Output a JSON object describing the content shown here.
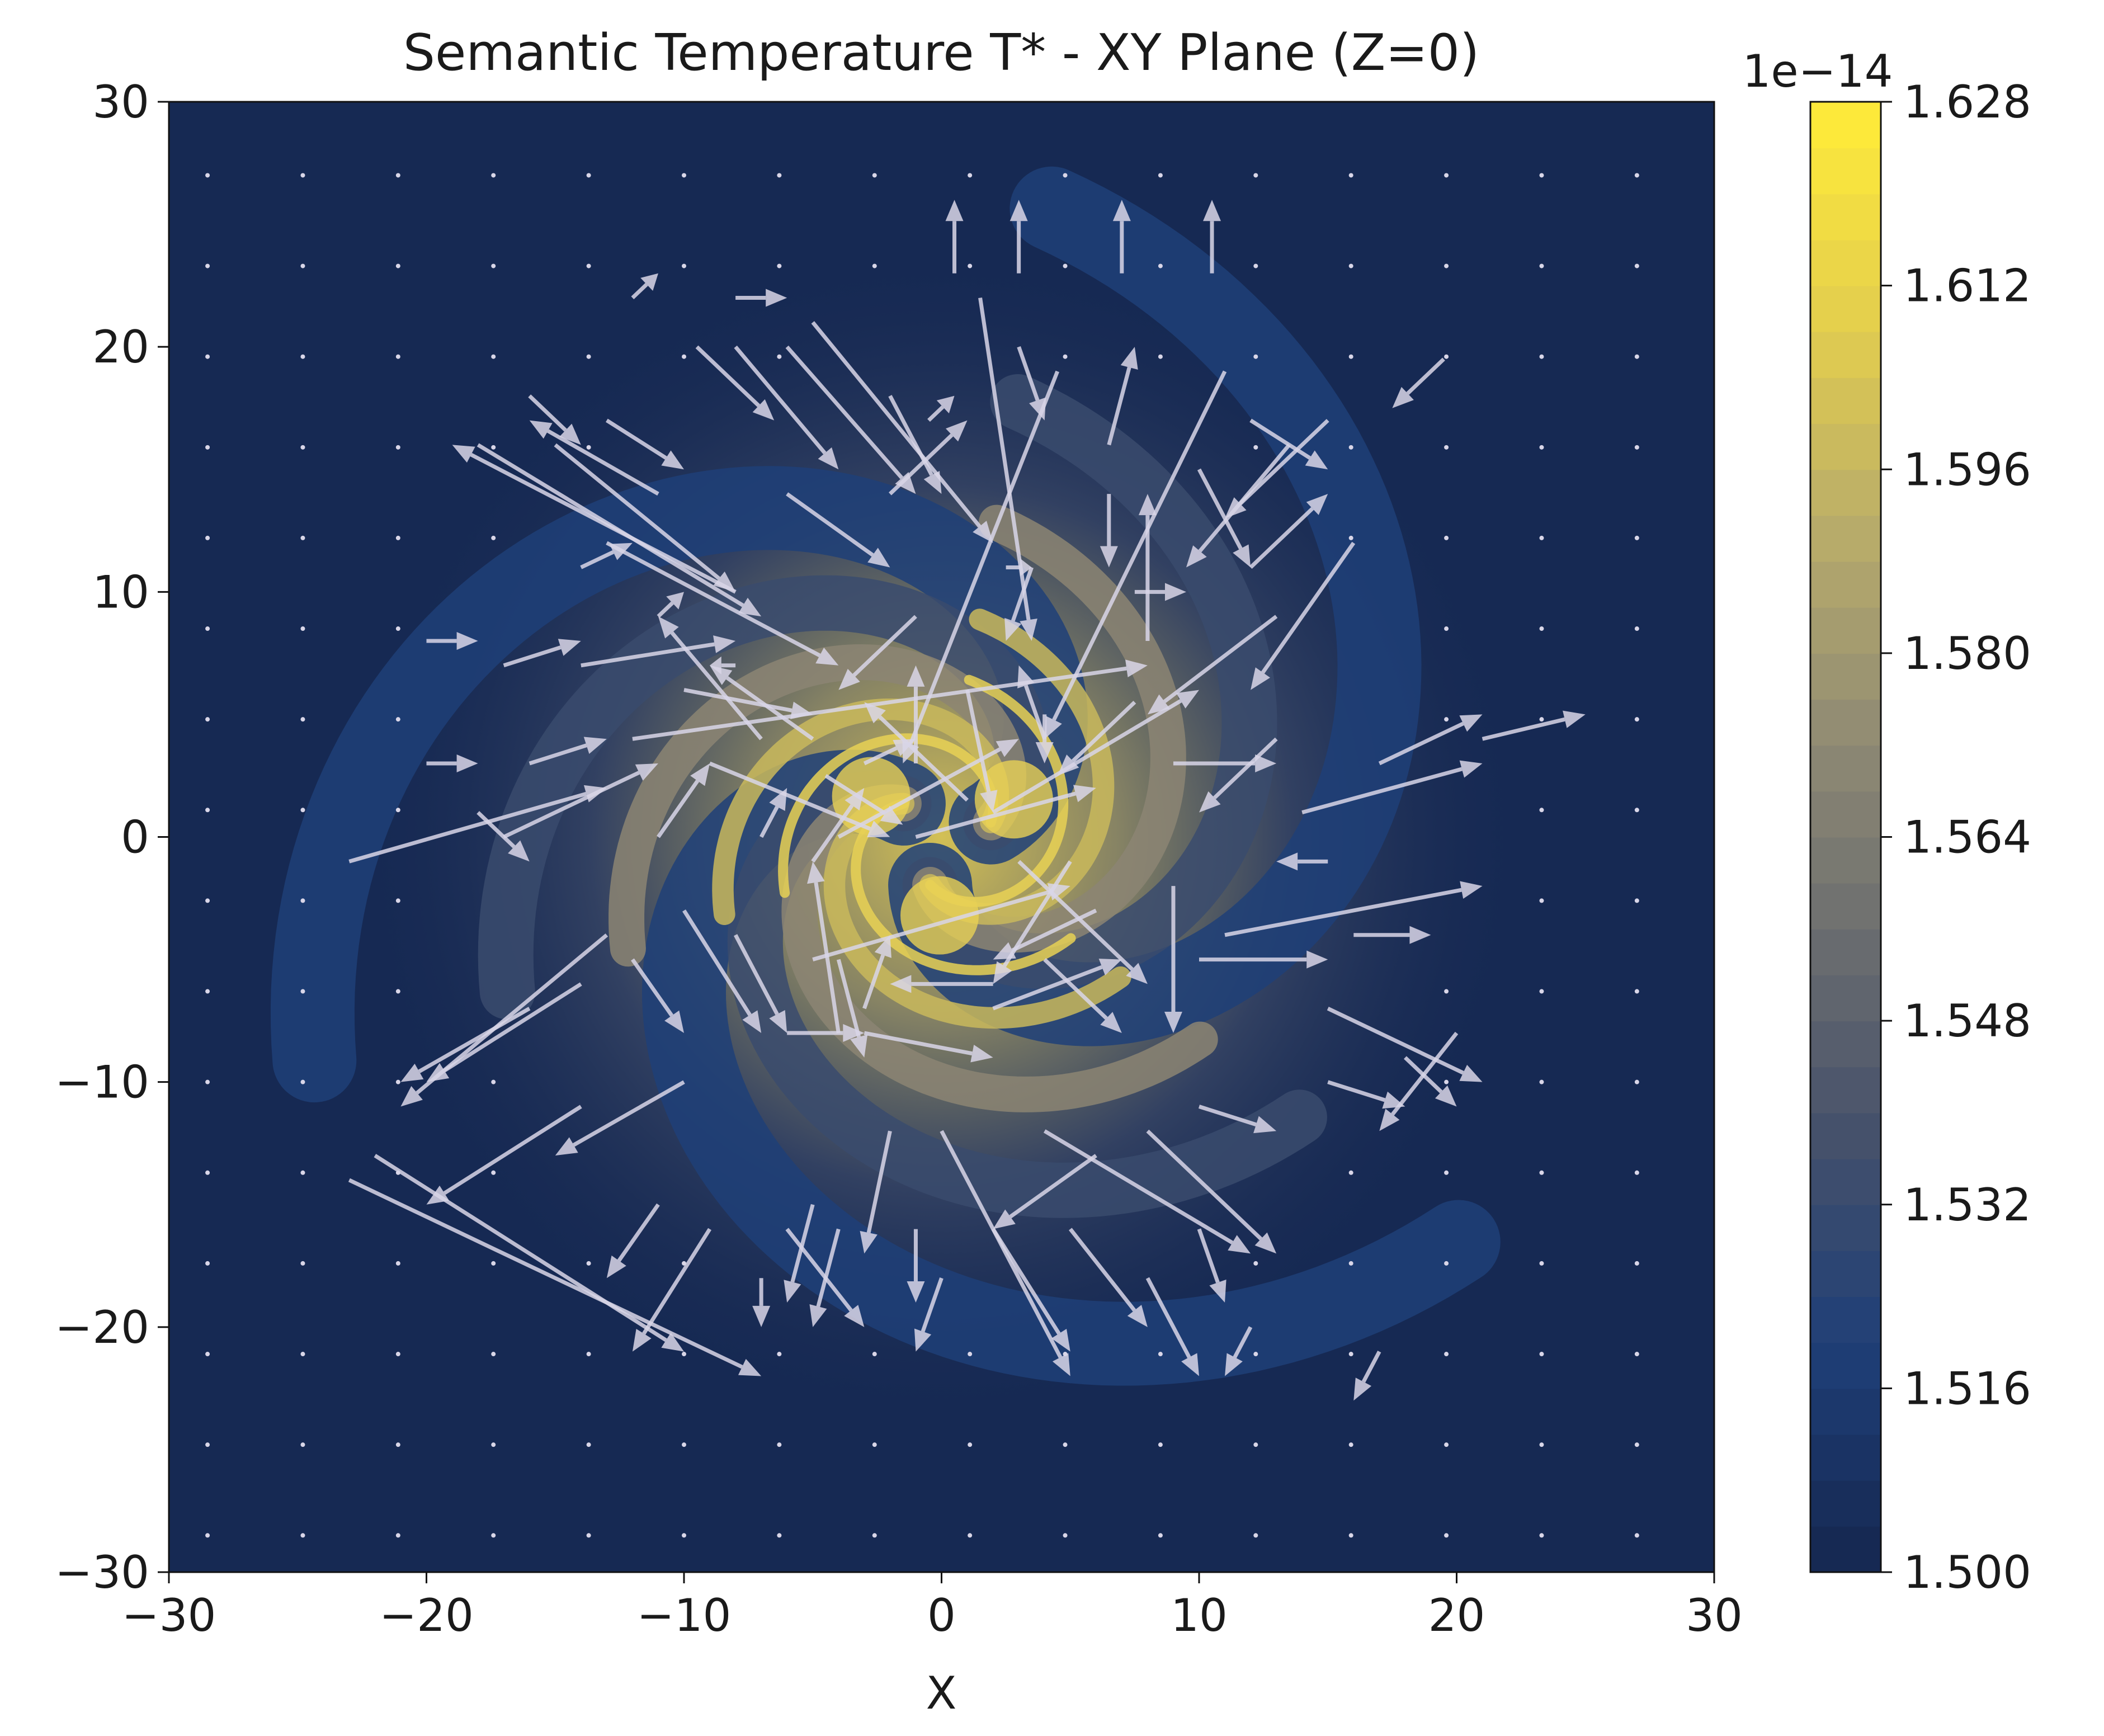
{
  "chart_data": {
    "type": "heatmap",
    "title": "Semantic Temperature T* - XY Plane (Z=0)",
    "xlabel": "X",
    "ylabel": "",
    "xlim": [
      -30,
      30
    ],
    "ylim": [
      -30,
      30
    ],
    "x_ticks": [
      -30,
      -20,
      -10,
      0,
      10,
      20,
      30
    ],
    "y_ticks": [
      -30,
      -20,
      -10,
      0,
      10,
      20,
      30
    ],
    "x_tick_labels": [
      "−30",
      "−20",
      "−10",
      "0",
      "10",
      "20",
      "30"
    ],
    "y_tick_labels": [
      "−30",
      "−20",
      "−10",
      "0",
      "10",
      "20",
      "30"
    ],
    "colorbar": {
      "label": "",
      "offset_text": "1e−14",
      "range": [
        1.5,
        1.628
      ],
      "ticks": [
        1.5,
        1.516,
        1.532,
        1.548,
        1.564,
        1.58,
        1.596,
        1.612,
        1.628
      ],
      "tick_labels": [
        "1.500",
        "1.516",
        "1.532",
        "1.548",
        "1.564",
        "1.580",
        "1.596",
        "1.612",
        "1.628"
      ],
      "colormap": "cividis",
      "colors": [
        "#162953",
        "#1f3f78",
        "#44506b",
        "#6b6d6f",
        "#908b74",
        "#b8ac6a",
        "#e2cd4e",
        "#fde93a"
      ]
    },
    "field": {
      "description_shown": "three-armed spiral of high temperature around the origin",
      "peak_value": 1.628,
      "background_value": 1.5,
      "spiral_arms": 3
    },
    "vector_field": {
      "grid_spacing": 3.7,
      "arrow_color": "#d9d6e8",
      "arrows": [
        [
          0.5,
          23,
          0,
          3
        ],
        [
          3,
          23,
          0,
          3
        ],
        [
          7,
          23,
          0,
          3
        ],
        [
          10.5,
          23,
          0,
          3
        ],
        [
          -12,
          22,
          1,
          1
        ],
        [
          -8,
          22,
          2,
          0
        ],
        [
          -9.5,
          20,
          3,
          -3
        ],
        [
          -8,
          20,
          4,
          -5
        ],
        [
          -6,
          20,
          5,
          -6
        ],
        [
          -5,
          21,
          7,
          -9
        ],
        [
          1.5,
          22,
          2,
          -14
        ],
        [
          3,
          20,
          1,
          -3
        ],
        [
          -2,
          18,
          2,
          -4
        ],
        [
          6.5,
          16,
          1,
          4
        ],
        [
          4.5,
          19,
          -6,
          -16
        ],
        [
          -0.5,
          17,
          1,
          1
        ],
        [
          -13,
          17,
          3,
          -2
        ],
        [
          -16,
          18,
          2,
          -2
        ],
        [
          -18,
          16,
          11,
          -7
        ],
        [
          -15,
          16,
          7,
          -6
        ],
        [
          -11,
          14,
          -5,
          3
        ],
        [
          -13,
          12,
          9,
          -5
        ],
        [
          10,
          15,
          2,
          -4
        ],
        [
          12,
          17,
          3,
          -2
        ],
        [
          15,
          17,
          -4,
          -4
        ],
        [
          13.5,
          16,
          -4,
          -5
        ],
        [
          11,
          19,
          -7,
          -15
        ],
        [
          19.5,
          19.5,
          -2,
          -2
        ],
        [
          -6,
          14,
          4,
          -3
        ],
        [
          6.5,
          14,
          0,
          -3
        ],
        [
          7.5,
          10,
          2,
          0
        ],
        [
          3.5,
          11,
          -1,
          -3
        ],
        [
          2.5,
          11,
          1,
          0
        ],
        [
          -8,
          10,
          -11,
          6
        ],
        [
          -2,
          14,
          3,
          3
        ],
        [
          -1,
          9,
          -3,
          -3
        ],
        [
          12,
          11,
          3,
          3
        ],
        [
          16,
          12,
          -4,
          -6
        ],
        [
          13,
          9,
          -5,
          -4
        ],
        [
          -14,
          11,
          2,
          1
        ],
        [
          -11,
          9,
          1,
          1
        ],
        [
          -17,
          7,
          3,
          1
        ],
        [
          -20,
          8,
          2,
          0
        ],
        [
          -14,
          7,
          6,
          1
        ],
        [
          -10,
          6,
          5,
          -1
        ],
        [
          -8,
          7,
          -1,
          0
        ],
        [
          -5,
          4,
          -4,
          3
        ],
        [
          -7,
          4,
          -4,
          5
        ],
        [
          -9,
          3,
          7,
          -3
        ],
        [
          -4.5,
          2.5,
          3,
          -2
        ],
        [
          -20,
          3,
          2,
          0
        ],
        [
          -16,
          3,
          3,
          1
        ],
        [
          -18,
          1,
          2,
          -2
        ],
        [
          -17,
          0,
          6,
          3
        ],
        [
          -11,
          0,
          2,
          3
        ],
        [
          -7,
          0,
          1,
          2
        ],
        [
          -5,
          -1,
          2,
          3
        ],
        [
          -12,
          4,
          20,
          3
        ],
        [
          -23,
          -1,
          10,
          3
        ],
        [
          -3,
          3,
          2,
          1
        ],
        [
          -1,
          3,
          0,
          4
        ],
        [
          8,
          8,
          0,
          6
        ],
        [
          1,
          6,
          1,
          -5
        ],
        [
          4,
          5,
          0,
          -2
        ],
        [
          7.5,
          5.5,
          -3,
          -3
        ],
        [
          1,
          1.5,
          -4,
          4
        ],
        [
          -4,
          0,
          7,
          4
        ],
        [
          2,
          1,
          8,
          5
        ],
        [
          3,
          -1,
          5,
          -5
        ],
        [
          -1,
          0,
          7,
          2
        ],
        [
          9,
          3,
          4,
          0
        ],
        [
          13,
          4,
          -3,
          -3
        ],
        [
          17,
          3,
          4,
          2
        ],
        [
          21,
          4,
          4,
          1
        ],
        [
          14,
          1,
          7,
          2
        ],
        [
          15,
          -1,
          -2,
          0
        ],
        [
          9,
          -2,
          0,
          -6
        ],
        [
          5,
          -1,
          -3,
          -5
        ],
        [
          4,
          4,
          -1,
          3
        ],
        [
          -10,
          -3,
          3,
          -5
        ],
        [
          -8,
          -4,
          2,
          -4
        ],
        [
          -4,
          -5,
          1,
          -4
        ],
        [
          -12,
          -5,
          2,
          -3
        ],
        [
          -14,
          -6,
          -6,
          -4
        ],
        [
          -16,
          -7,
          -5,
          -3
        ],
        [
          -13,
          -4,
          -8,
          -7
        ],
        [
          -10,
          -10,
          -5,
          -3
        ],
        [
          -6,
          -8,
          3,
          0
        ],
        [
          -3,
          -8,
          5,
          -1
        ],
        [
          -5,
          -5,
          10,
          3
        ],
        [
          -14,
          -11,
          -6,
          -4
        ],
        [
          -4,
          -8,
          -1,
          7
        ],
        [
          -3,
          -7,
          1,
          3
        ],
        [
          2,
          -6,
          -4,
          0
        ],
        [
          2,
          -7,
          5,
          2
        ],
        [
          4,
          -5,
          3,
          -3
        ],
        [
          6,
          -3,
          -4,
          -2
        ],
        [
          10,
          -5,
          5,
          0
        ],
        [
          11,
          -4,
          10,
          2
        ],
        [
          16,
          -4,
          3,
          0
        ],
        [
          15,
          -7,
          6,
          -3
        ],
        [
          15,
          -10,
          3,
          -1
        ],
        [
          18,
          -9,
          2,
          -2
        ],
        [
          20,
          -8,
          -3,
          -4
        ],
        [
          10,
          -11,
          3,
          -1
        ],
        [
          6,
          -13,
          -4,
          -3
        ],
        [
          4,
          -12,
          8,
          -5
        ],
        [
          8,
          -12,
          5,
          -5
        ],
        [
          0,
          -12,
          5,
          -10
        ],
        [
          -2,
          -12,
          -1,
          -5
        ],
        [
          -5,
          -15,
          -1,
          -4
        ],
        [
          -11,
          -15,
          -2,
          -3
        ],
        [
          -9,
          -16,
          -3,
          -5
        ],
        [
          -7,
          -18,
          0,
          -2
        ],
        [
          -6,
          -16,
          3,
          -4
        ],
        [
          -4,
          -16,
          -1,
          -4
        ],
        [
          2,
          -16,
          3,
          -5
        ],
        [
          5,
          -16,
          3,
          -4
        ],
        [
          8,
          -18,
          2,
          -4
        ],
        [
          10,
          -16,
          1,
          -3
        ],
        [
          -1,
          -16,
          0,
          -3
        ],
        [
          0,
          -18,
          -1,
          -3
        ],
        [
          12,
          -20,
          -1,
          -2
        ],
        [
          17,
          -21,
          -1,
          -2
        ],
        [
          -23,
          -14,
          16,
          -8
        ],
        [
          -22,
          -13,
          12,
          -8
        ]
      ]
    }
  }
}
